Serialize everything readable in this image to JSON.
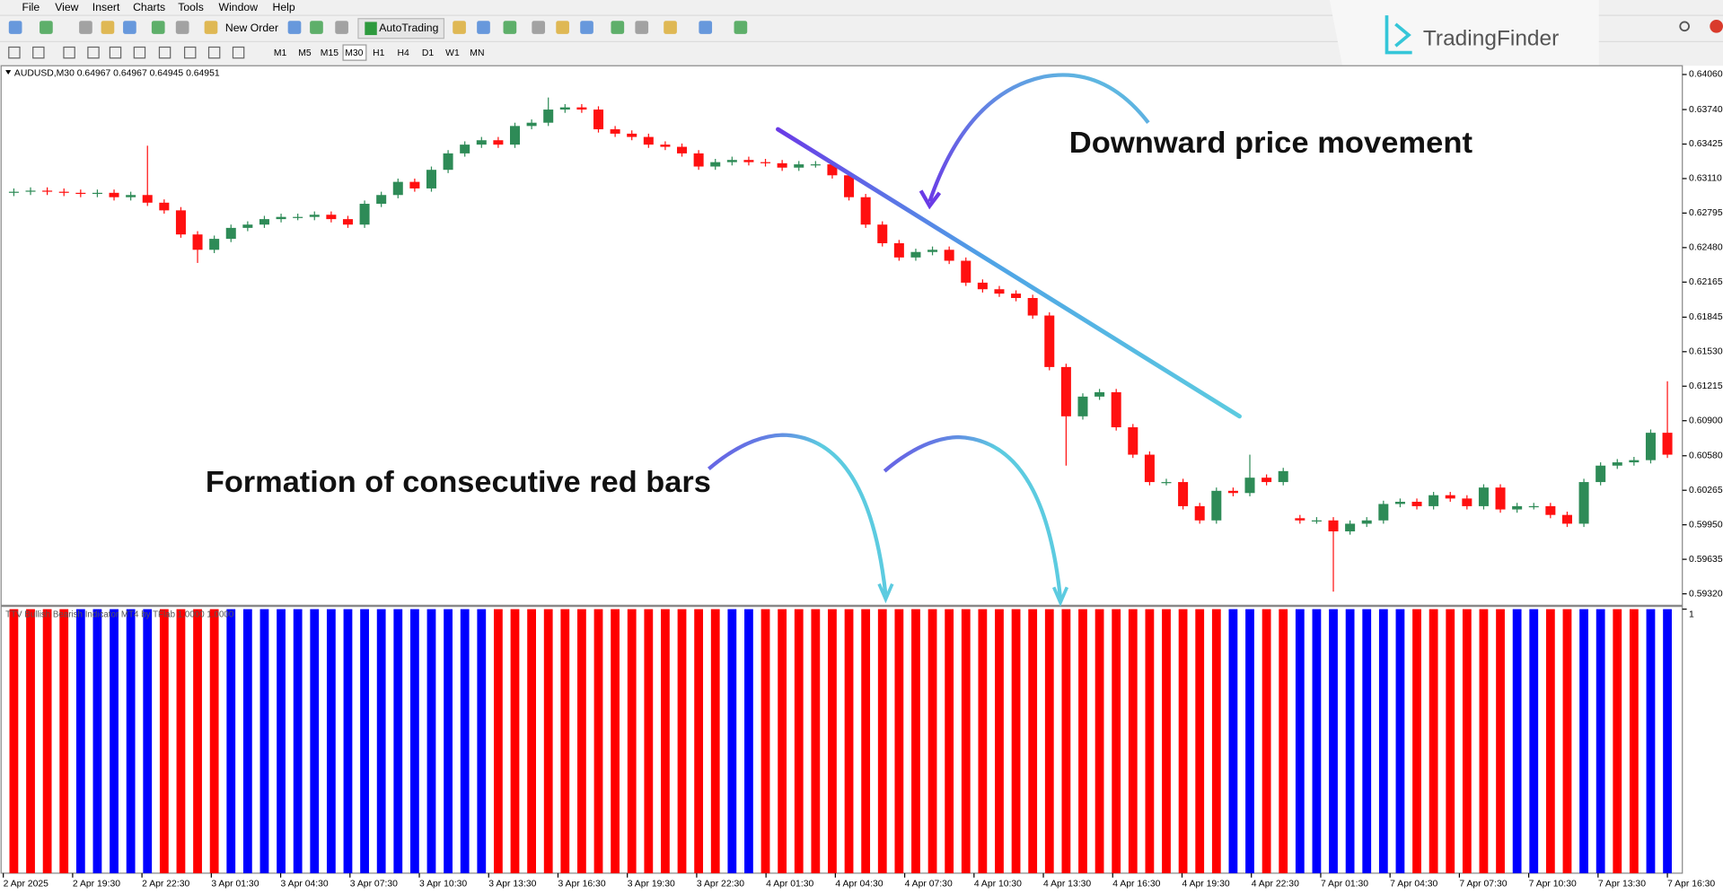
{
  "menu": [
    "File",
    "View",
    "Insert",
    "Charts",
    "Tools",
    "Window",
    "Help"
  ],
  "toolbar": {
    "new_order": "New Order",
    "autotrading": "AutoTrading",
    "timeframes": [
      "M1",
      "M5",
      "M15",
      "M30",
      "H1",
      "H4",
      "D1",
      "W1",
      "MN"
    ]
  },
  "logo": "TradingFinder",
  "annotations": [
    "Downward price movement",
    "Formation of consecutive red bars"
  ],
  "time_axis": {
    "labels": [
      "2 Apr 2025",
      "2 Apr 19:30",
      "2 Apr 22:30",
      "3 Apr 01:30",
      "3 Apr 04:30",
      "3 Apr 07:30",
      "3 Apr 10:30",
      "3 Apr 13:30",
      "3 Apr 16:30",
      "3 Apr 19:30",
      "3 Apr 22:30",
      "4 Apr 01:30",
      "4 Apr 04:30",
      "4 Apr 07:30",
      "4 Apr 10:30",
      "4 Apr 13:30",
      "4 Apr 16:30",
      "4 Apr 19:30",
      "4 Apr 22:30",
      "7 Apr 01:30",
      "7 Apr 04:30",
      "7 Apr 07:30",
      "7 Apr 10:30",
      "7 Apr 13:30",
      "7 Apr 16:30"
    ]
  },
  "chart_data": [
    {
      "type": "candlestick",
      "title": "AUDUSD,M30  0.64967 0.64967 0.64945 0.64951",
      "up_color": "#2e8b57",
      "down_color": "#ff1010",
      "open": [
        0.6298,
        0.6299,
        0.63,
        0.6299,
        0.6298,
        0.6297,
        0.6298,
        0.6294,
        0.6296,
        0.6289,
        0.6282,
        0.626,
        0.6246,
        0.6256,
        0.6266,
        0.6269,
        0.6274,
        0.6276,
        0.6276,
        0.6278,
        0.6274,
        0.6269,
        0.6288,
        0.6296,
        0.6308,
        0.6302,
        0.6319,
        0.6334,
        0.6342,
        0.6346,
        0.6342,
        0.6359,
        0.6362,
        0.6374,
        0.6376,
        0.6374,
        0.6356,
        0.6352,
        0.6349,
        0.6342,
        0.634,
        0.6334,
        0.6322,
        0.6326,
        0.6328,
        0.6326,
        0.6325,
        0.6321,
        0.6324,
        0.6324,
        0.6314,
        0.6294,
        0.6269,
        0.6252,
        0.6239,
        0.6244,
        0.6246,
        0.6236,
        0.6216,
        0.621,
        0.6206,
        0.6202,
        0.6186,
        0.6139,
        0.6094,
        0.6112,
        0.6116,
        0.6084,
        0.6059,
        0.6034,
        0.6034,
        0.6012,
        0.5999,
        0.6026,
        0.6024,
        0.6038,
        0.6034,
        0.6001,
        0.5999,
        0.5999,
        0.5989,
        0.5996,
        0.5999,
        0.6014,
        0.6016,
        0.6012,
        0.6022,
        0.6019,
        0.6012,
        0.6029,
        0.6009,
        0.6012,
        0.6012,
        0.6004,
        0.5996,
        0.6034,
        0.6049,
        0.6052,
        0.6054,
        0.6079
      ],
      "high": [
        0.6302,
        0.6303,
        0.6303,
        0.6302,
        0.6301,
        0.6301,
        0.6301,
        0.6299,
        0.6341,
        0.6292,
        0.6285,
        0.6263,
        0.6259,
        0.6269,
        0.6272,
        0.6277,
        0.6279,
        0.6279,
        0.6281,
        0.6281,
        0.6277,
        0.6291,
        0.6299,
        0.6311,
        0.6311,
        0.6322,
        0.6337,
        0.6345,
        0.6349,
        0.6349,
        0.6362,
        0.6365,
        0.6385,
        0.6379,
        0.6379,
        0.6377,
        0.6359,
        0.6355,
        0.6352,
        0.6345,
        0.6343,
        0.6337,
        0.6329,
        0.6331,
        0.6331,
        0.6329,
        0.6328,
        0.6327,
        0.6327,
        0.6327,
        0.6317,
        0.6297,
        0.6272,
        0.6255,
        0.6247,
        0.6249,
        0.6249,
        0.6239,
        0.6219,
        0.6213,
        0.6209,
        0.6205,
        0.6189,
        0.6142,
        0.6115,
        0.6119,
        0.6119,
        0.6087,
        0.6062,
        0.6037,
        0.6037,
        0.6015,
        0.6029,
        0.6029,
        0.6059,
        0.6041,
        0.6047,
        0.6004,
        0.6002,
        0.6002,
        0.5999,
        0.6002,
        0.6017,
        0.6019,
        0.6019,
        0.6025,
        0.6025,
        0.6022,
        0.6032,
        0.6032,
        0.6015,
        0.6015,
        0.6015,
        0.6007,
        0.6037,
        0.6052,
        0.6055,
        0.6057,
        0.6082,
        0.6126
      ],
      "low": [
        0.6295,
        0.6296,
        0.6296,
        0.6295,
        0.6294,
        0.6294,
        0.6291,
        0.6291,
        0.6286,
        0.6279,
        0.6257,
        0.6234,
        0.6243,
        0.6253,
        0.6263,
        0.6266,
        0.6271,
        0.6273,
        0.6273,
        0.6271,
        0.6266,
        0.6266,
        0.6285,
        0.6293,
        0.6299,
        0.6299,
        0.6316,
        0.6331,
        0.6339,
        0.6339,
        0.6339,
        0.6356,
        0.6359,
        0.6371,
        0.6371,
        0.6353,
        0.6349,
        0.6346,
        0.6339,
        0.6337,
        0.6331,
        0.6319,
        0.6319,
        0.6323,
        0.6323,
        0.6322,
        0.6318,
        0.6318,
        0.6321,
        0.6311,
        0.6291,
        0.6266,
        0.6249,
        0.6236,
        0.6236,
        0.6241,
        0.6233,
        0.6213,
        0.6207,
        0.6203,
        0.6199,
        0.6183,
        0.6136,
        0.6049,
        0.6091,
        0.6109,
        0.6081,
        0.6056,
        0.6031,
        0.6031,
        0.6009,
        0.5996,
        0.5996,
        0.6021,
        0.6021,
        0.6031,
        0.6031,
        0.5996,
        0.5996,
        0.5934,
        0.5986,
        0.5993,
        0.5996,
        0.6011,
        0.6009,
        0.6009,
        0.6016,
        0.6009,
        0.6009,
        0.6006,
        0.6006,
        0.6009,
        0.6001,
        0.5993,
        0.5993,
        0.6031,
        0.6046,
        0.6049,
        0.6051,
        0.6056
      ],
      "close": [
        0.6299,
        0.63,
        0.6299,
        0.6298,
        0.6297,
        0.6298,
        0.6294,
        0.6296,
        0.6289,
        0.6282,
        0.626,
        0.6246,
        0.6256,
        0.6266,
        0.6269,
        0.6274,
        0.6276,
        0.6276,
        0.6278,
        0.6274,
        0.6269,
        0.6288,
        0.6296,
        0.6308,
        0.6302,
        0.6319,
        0.6334,
        0.6342,
        0.6346,
        0.6342,
        0.6359,
        0.6362,
        0.6374,
        0.6376,
        0.6374,
        0.6356,
        0.6352,
        0.6349,
        0.6342,
        0.634,
        0.6334,
        0.6322,
        0.6326,
        0.6328,
        0.6326,
        0.6325,
        0.6321,
        0.6324,
        0.6324,
        0.6314,
        0.6294,
        0.6269,
        0.6252,
        0.6239,
        0.6244,
        0.6246,
        0.6236,
        0.6216,
        0.621,
        0.6206,
        0.6202,
        0.6186,
        0.6139,
        0.6094,
        0.6112,
        0.6116,
        0.6084,
        0.6059,
        0.6034,
        0.6034,
        0.6012,
        0.5999,
        0.6026,
        0.6024,
        0.6038,
        0.6034,
        0.6044,
        0.5999,
        0.5999,
        0.5989,
        0.5996,
        0.5999,
        0.6014,
        0.6016,
        0.6012,
        0.6022,
        0.6019,
        0.6012,
        0.6029,
        0.6009,
        0.6012,
        0.6012,
        0.6004,
        0.5996,
        0.6034,
        0.6049,
        0.6052,
        0.6054,
        0.6079,
        0.6059
      ],
      "ylim": [
        0.5922,
        0.6412
      ],
      "yticks": [
        {
          "value": 0.6406,
          "label": "0.64060"
        },
        {
          "value": 0.6374,
          "label": "0.63740"
        },
        0.63425,
        {
          "value": 0.6311,
          "label": "0.63110"
        },
        0.62795,
        {
          "value": 0.6248,
          "label": "0.62480"
        },
        0.62165,
        0.61845,
        {
          "value": 0.6153,
          "label": "0.61530"
        },
        0.61215,
        {
          "value": 0.609,
          "label": "0.60900"
        },
        {
          "value": 0.6058,
          "label": "0.60580"
        },
        0.60265,
        {
          "value": 0.5995,
          "label": "0.59950"
        },
        0.59635,
        {
          "value": 0.5932,
          "label": "0.59320"
        }
      ]
    },
    {
      "type": "bar",
      "title": "TTV Bullish Bearish Indicator MT4 by TFlab 1.0000 1.0000",
      "values": [
        1,
        1,
        1,
        1,
        1,
        1,
        1,
        1,
        1,
        1,
        1,
        1,
        1,
        1,
        1,
        1,
        1,
        1,
        1,
        1,
        1,
        1,
        1,
        1,
        1,
        1,
        1,
        1,
        1,
        1,
        1,
        1,
        1,
        1,
        1,
        1,
        1,
        1,
        1,
        1,
        1,
        1,
        1,
        1,
        1,
        1,
        1,
        1,
        1,
        1,
        1,
        1,
        1,
        1,
        1,
        1,
        1,
        1,
        1,
        1,
        1,
        1,
        1,
        1,
        1,
        1,
        1,
        1,
        1,
        1,
        1,
        1,
        1,
        1,
        1,
        1,
        1,
        1,
        1,
        1,
        1,
        1,
        1,
        1,
        1,
        1,
        1,
        1,
        1,
        1,
        1,
        1,
        1,
        1,
        1,
        1,
        1,
        1,
        1,
        1
      ],
      "colors": [
        "red",
        "red",
        "red",
        "red",
        "blue",
        "blue",
        "blue",
        "blue",
        "blue",
        "red",
        "red",
        "red",
        "red",
        "blue",
        "blue",
        "blue",
        "blue",
        "blue",
        "blue",
        "blue",
        "blue",
        "blue",
        "blue",
        "blue",
        "blue",
        "blue",
        "blue",
        "blue",
        "blue",
        "red",
        "red",
        "red",
        "red",
        "red",
        "red",
        "red",
        "red",
        "red",
        "red",
        "red",
        "red",
        "red",
        "red",
        "blue",
        "blue",
        "red",
        "red",
        "red",
        "red",
        "red",
        "red",
        "red",
        "red",
        "red",
        "red",
        "red",
        "red",
        "red",
        "red",
        "red",
        "red",
        "red",
        "red",
        "red",
        "red",
        "red",
        "red",
        "red",
        "red",
        "red",
        "red",
        "red",
        "red",
        "blue",
        "blue",
        "red",
        "red",
        "blue",
        "blue",
        "blue",
        "blue",
        "blue",
        "blue",
        "blue",
        "red",
        "red",
        "red",
        "red",
        "red",
        "red",
        "blue",
        "blue",
        "red",
        "red",
        "blue",
        "blue",
        "red",
        "red",
        "blue",
        "blue"
      ],
      "ylim": [
        0,
        1
      ],
      "yticks": [
        1
      ]
    }
  ]
}
